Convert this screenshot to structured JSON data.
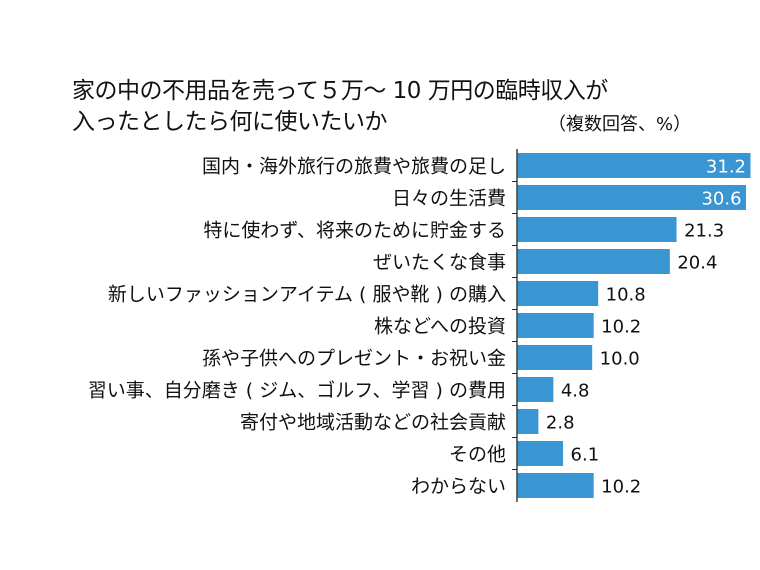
{
  "chart_data": {
    "type": "bar",
    "orientation": "horizontal",
    "title": [
      "家の中の不用品を売って５万〜 10 万円の臨時収入が",
      "入ったとしたら何に使いたいか"
    ],
    "note": "（複数回答、%）",
    "categories": [
      "国内・海外旅行の旅費や旅費の足し",
      "日々の生活費",
      "特に使わず、将来のために貯金する",
      "ぜいたくな食事",
      "新しいファッションアイテム ( 服や靴 ) の購入",
      "株などへの投資",
      "孫や子供へのプレゼント・お祝い金",
      "習い事、自分磨き ( ジム、ゴルフ、学習 ) の費用",
      "寄付や地域活動などの社会貢献",
      "その他",
      "わからない"
    ],
    "values": [
      31.2,
      30.6,
      21.3,
      20.4,
      10.8,
      10.2,
      10.0,
      4.8,
      2.8,
      6.1,
      10.2
    ],
    "value_labels": [
      "31.2",
      "30.6",
      "21.3",
      "20.4",
      "10.8",
      "10.2",
      "10.0",
      "4.8",
      "2.8",
      "6.1",
      "10.2"
    ],
    "xlim": [
      0,
      31.2
    ],
    "grid": false,
    "bar_color": "#3a96d2"
  }
}
